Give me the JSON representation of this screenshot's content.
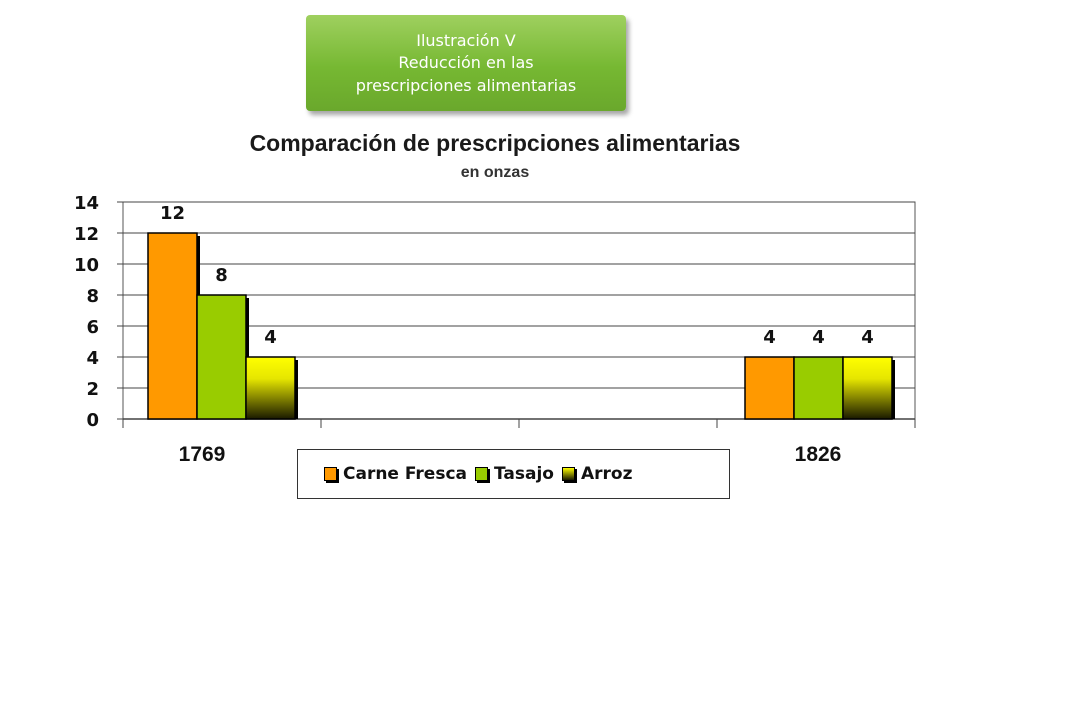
{
  "banner": {
    "line1": "Ilustración V",
    "line2": "Reducción en las",
    "line3": "prescripciones alimentarias"
  },
  "chart_data": {
    "type": "bar",
    "title": "Comparación de prescripciones alimentarias",
    "subtitle": "en onzas",
    "categories": [
      "1769",
      "1826"
    ],
    "ylim": [
      0,
      14
    ],
    "yticks": [
      0,
      2,
      4,
      6,
      8,
      10,
      12,
      14
    ],
    "grid": true,
    "legend_position": "bottom",
    "data_labels": true,
    "series": [
      {
        "name": "Carne Fresca",
        "values": [
          12,
          4
        ],
        "color": "#ff9900"
      },
      {
        "name": "Tasajo",
        "values": [
          8,
          4
        ],
        "color": "#99cc00"
      },
      {
        "name": "Arroz",
        "values": [
          4,
          4
        ],
        "color": "#ffff00"
      }
    ]
  }
}
